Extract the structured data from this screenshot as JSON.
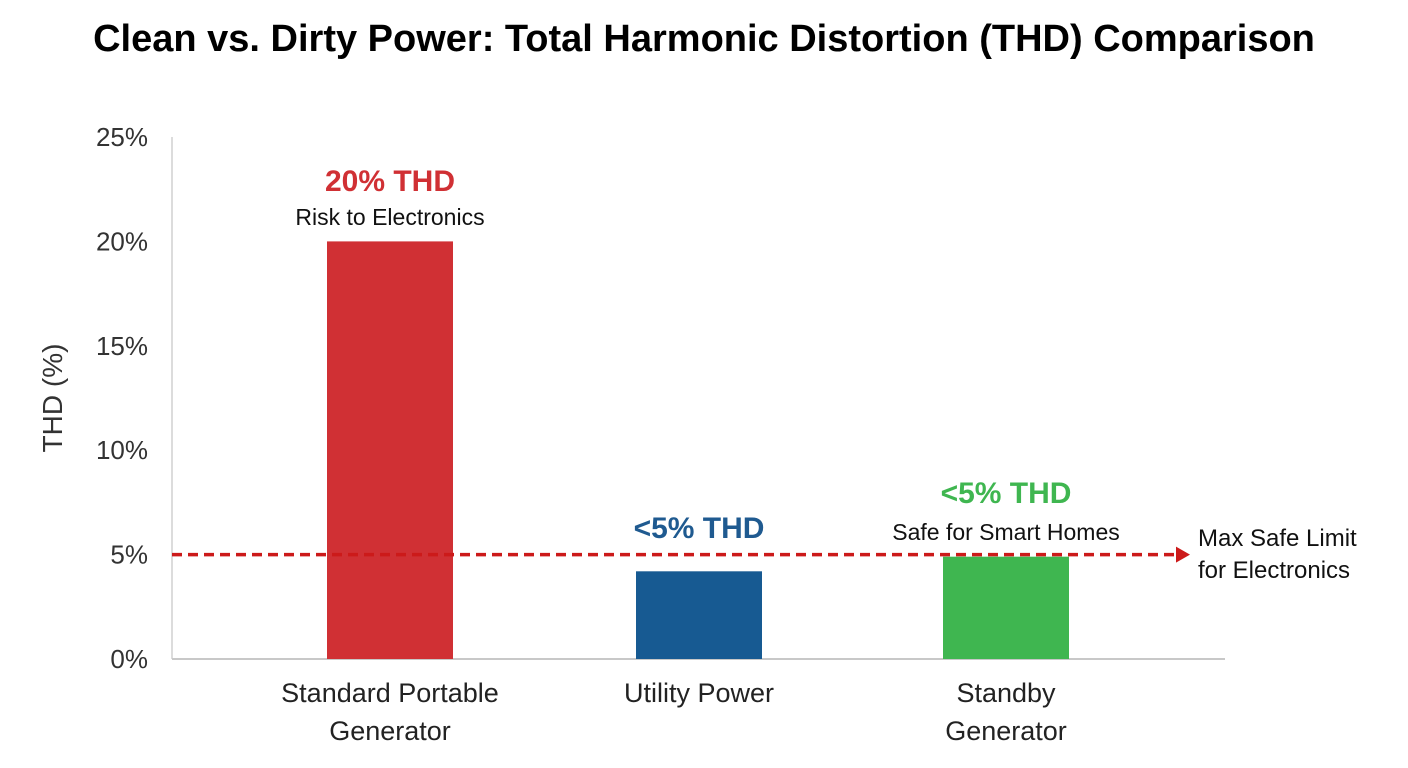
{
  "chart_data": {
    "type": "bar",
    "title": "Clean vs. Dirty Power: Total Harmonic Distortion (THD) Comparison",
    "xlabel": "",
    "ylabel": "THD (%)",
    "ylim": [
      0,
      25
    ],
    "yticks": [
      0,
      5,
      10,
      15,
      20,
      25
    ],
    "ytick_labels": [
      "0%",
      "5%",
      "10%",
      "15%",
      "20%",
      "25%"
    ],
    "grid": false,
    "categories": [
      [
        "Standard Portable",
        "Generator"
      ],
      [
        "Utility Power"
      ],
      [
        "Standby",
        "Generator"
      ]
    ],
    "values": [
      20,
      4.2,
      4.9
    ],
    "colors": [
      "#d03034",
      "#175a92",
      "#3fb650"
    ],
    "annotations": [
      {
        "main": "20% THD",
        "sub": "Risk to Electronics",
        "color": "#d03034"
      },
      {
        "main": "<5% THD",
        "sub": "",
        "color": "#1f5a90"
      },
      {
        "main": "<5% THD",
        "sub": "Safe for Smart Homes",
        "color": "#3fb650"
      }
    ],
    "reference_line": {
      "value": 5,
      "label": [
        "Max Safe Limit",
        "for Electronics"
      ],
      "color": "#cc1a1a",
      "style": "dashed-arrow"
    }
  }
}
